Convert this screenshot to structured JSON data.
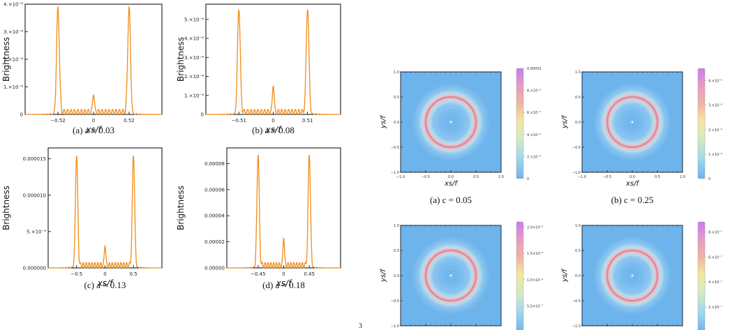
{
  "page_number": "3",
  "line_plots": [
    {
      "caption": "(a) a = 0.03",
      "xlabel": "xs/f",
      "ylabel": "Brightness",
      "peak_x": 0.52,
      "center_value": 7e-07,
      "peak_value": 3.8e-06,
      "ylim": [
        0,
        4e-06
      ],
      "xticks": [
        {
          "v": -0.52,
          "label": "−0.52"
        },
        {
          "v": 0,
          "label": "0"
        },
        {
          "v": 0.52,
          "label": "0.52"
        }
      ],
      "yticks": [
        {
          "v": 0,
          "label": "0"
        },
        {
          "v": 1e-06,
          "label": "1.×10⁻⁶"
        },
        {
          "v": 2e-06,
          "label": "2.×10⁻⁶"
        },
        {
          "v": 3e-06,
          "label": "3.×10⁻⁶"
        },
        {
          "v": 4e-06,
          "label": "4.×10⁻⁶"
        }
      ]
    },
    {
      "caption": "(b) a = 0.08",
      "xlabel": "xs/f",
      "ylabel": "Brightness",
      "peak_x": 0.51,
      "center_value": 1.5e-06,
      "peak_value": 5.5e-06,
      "ylim": [
        0,
        5.8e-06
      ],
      "xticks": [
        {
          "v": -0.51,
          "label": "−0.51"
        },
        {
          "v": 0,
          "label": "0"
        },
        {
          "v": 0.51,
          "label": "0.51"
        }
      ],
      "yticks": [
        {
          "v": 0,
          "label": "0"
        },
        {
          "v": 1e-06,
          "label": "1.×10⁻⁶"
        },
        {
          "v": 2e-06,
          "label": "2.×10⁻⁶"
        },
        {
          "v": 3e-06,
          "label": "3.×10⁻⁶"
        },
        {
          "v": 4e-06,
          "label": "4.×10⁻⁶"
        },
        {
          "v": 5e-06,
          "label": "5.×10⁻⁶"
        }
      ]
    },
    {
      "caption": "(c) a = 0.13",
      "xlabel": "xs/f",
      "ylabel": "Brightness",
      "peak_x": 0.5,
      "center_value": 3e-06,
      "peak_value": 1.53e-05,
      "ylim": [
        0,
        1.65e-05
      ],
      "xticks": [
        {
          "v": -0.5,
          "label": "−0.5"
        },
        {
          "v": 0,
          "label": "0"
        },
        {
          "v": 0.5,
          "label": "0.5"
        }
      ],
      "yticks": [
        {
          "v": 0,
          "label": "0.000000"
        },
        {
          "v": 5e-06,
          "label": "5.×10⁻⁶"
        },
        {
          "v": 1e-05,
          "label": "0.000010"
        },
        {
          "v": 1.5e-05,
          "label": "0.000015"
        }
      ]
    },
    {
      "caption": "(d) a = 0.18",
      "xlabel": "xs/f",
      "ylabel": "Brightness",
      "peak_x": 0.45,
      "center_value": 2.3e-05,
      "peak_value": 8.6e-05,
      "ylim": [
        0,
        9.2e-05
      ],
      "xticks": [
        {
          "v": -0.45,
          "label": "−0.45"
        },
        {
          "v": 0,
          "label": "0"
        },
        {
          "v": 0.45,
          "label": "0.45"
        }
      ],
      "yticks": [
        {
          "v": 0,
          "label": "0.00000"
        },
        {
          "v": 2e-05,
          "label": "0.00002"
        },
        {
          "v": 4e-05,
          "label": "0.00004"
        },
        {
          "v": 6e-05,
          "label": "0.00006"
        },
        {
          "v": 8e-05,
          "label": "0.00008"
        }
      ]
    }
  ],
  "density_plots": [
    {
      "caption": "(a) c = 0.05",
      "xlabel": "xs/f",
      "ylabel": "ys/f",
      "ring_radius": 0.5,
      "ticks": [
        {
          "v": -1.0,
          "label": "−1.0"
        },
        {
          "v": -0.5,
          "label": "−0.5"
        },
        {
          "v": 0.0,
          "label": "0.0"
        },
        {
          "v": 0.5,
          "label": "0.5"
        },
        {
          "v": 1.0,
          "label": "1.0"
        }
      ],
      "colorbar_max": 1e-05,
      "colorbar_ticks": [
        {
          "v": 0,
          "label": "0"
        },
        {
          "v": 2e-06,
          "label": "2.×10⁻⁶"
        },
        {
          "v": 4e-06,
          "label": "4.×10⁻⁶"
        },
        {
          "v": 6e-06,
          "label": "6.×10⁻⁶"
        },
        {
          "v": 8e-06,
          "label": "8.×10⁻⁶"
        },
        {
          "v": 1e-05,
          "label": "0.00001"
        }
      ]
    },
    {
      "caption": "(b) c = 0.25",
      "xlabel": "xs/f",
      "ylabel": "ys/f",
      "ring_radius": 0.5,
      "ticks": [
        {
          "v": -1.0,
          "label": "−1.0"
        },
        {
          "v": -0.5,
          "label": "−0.5"
        },
        {
          "v": 0.0,
          "label": "0.0"
        },
        {
          "v": 0.5,
          "label": "0.5"
        },
        {
          "v": 1.0,
          "label": "1.0"
        }
      ],
      "colorbar_max": 4.5e-06,
      "colorbar_ticks": [
        {
          "v": 0,
          "label": "0"
        },
        {
          "v": 1e-06,
          "label": "1.×10⁻⁶"
        },
        {
          "v": 2e-06,
          "label": "2.×10⁻⁶"
        },
        {
          "v": 3e-06,
          "label": "3.×10⁻⁶"
        },
        {
          "v": 4e-06,
          "label": "4.×10⁻⁶"
        }
      ]
    },
    {
      "caption": "",
      "xlabel": "",
      "ylabel": "ys/f",
      "ring_radius": 0.5,
      "ticks": [
        {
          "v": -1.0,
          "label": "−1.0"
        },
        {
          "v": -0.5,
          "label": "−0.5"
        },
        {
          "v": 0.0,
          "label": "0.0"
        },
        {
          "v": 0.5,
          "label": "0.5"
        },
        {
          "v": 1.0,
          "label": "1.0"
        }
      ],
      "colorbar_max": 2.1e-06,
      "colorbar_ticks": [
        {
          "v": 5e-07,
          "label": "5.0×10⁻⁷"
        },
        {
          "v": 1e-06,
          "label": "1.0×10⁻⁶"
        },
        {
          "v": 1.5e-06,
          "label": "1.5×10⁻⁶"
        },
        {
          "v": 2e-06,
          "label": "2.0×10⁻⁶"
        }
      ]
    },
    {
      "caption": "",
      "xlabel": "",
      "ylabel": "ys/f",
      "ring_radius": 0.5,
      "ticks": [
        {
          "v": -1.0,
          "label": "−1.0"
        },
        {
          "v": -0.5,
          "label": "−0.5"
        },
        {
          "v": 0.0,
          "label": "0.0"
        },
        {
          "v": 0.5,
          "label": "0.5"
        },
        {
          "v": 1.0,
          "label": "1.0"
        }
      ],
      "colorbar_max": 8.8e-07,
      "colorbar_ticks": [
        {
          "v": 2e-07,
          "label": "2.×10⁻⁷"
        },
        {
          "v": 4e-07,
          "label": "4.×10⁻⁷"
        },
        {
          "v": 6e-07,
          "label": "6.×10⁻⁷"
        },
        {
          "v": 8e-07,
          "label": "8.×10⁻⁷"
        }
      ]
    }
  ],
  "chart_data": [
    {
      "type": "line",
      "title": "(a) a = 0.03",
      "xlabel": "xs/f",
      "ylabel": "Brightness",
      "xlim": [
        -1,
        1
      ],
      "ylim": [
        0,
        4e-06
      ],
      "series": [
        {
          "x": [
            -1,
            -0.52,
            0,
            0.52,
            1
          ],
          "y": [
            0,
            3.8e-06,
            7e-07,
            3.8e-06,
            0
          ]
        }
      ]
    },
    {
      "type": "line",
      "title": "(b) a = 0.08",
      "xlabel": "xs/f",
      "ylabel": "Brightness",
      "xlim": [
        -1,
        1
      ],
      "ylim": [
        0,
        5.8e-06
      ],
      "series": [
        {
          "x": [
            -1,
            -0.51,
            0,
            0.51,
            1
          ],
          "y": [
            0,
            5.5e-06,
            1.5e-06,
            5.5e-06,
            0
          ]
        }
      ]
    },
    {
      "type": "line",
      "title": "(c) a = 0.13",
      "xlabel": "xs/f",
      "ylabel": "Brightness",
      "xlim": [
        -1,
        1
      ],
      "ylim": [
        0,
        1.65e-05
      ],
      "series": [
        {
          "x": [
            -1,
            -0.5,
            0,
            0.5,
            1
          ],
          "y": [
            0,
            1.53e-05,
            3e-06,
            1.53e-05,
            0
          ]
        }
      ]
    },
    {
      "type": "line",
      "title": "(d) a = 0.18",
      "xlabel": "xs/f",
      "ylabel": "Brightness",
      "xlim": [
        -1,
        1
      ],
      "ylim": [
        0,
        9.2e-05
      ],
      "series": [
        {
          "x": [
            -1,
            -0.45,
            0,
            0.45,
            1
          ],
          "y": [
            0,
            8.6e-05,
            2.3e-05,
            8.6e-05,
            0
          ]
        }
      ]
    },
    {
      "type": "heatmap",
      "title": "(a) c = 0.05",
      "xlabel": "xs/f",
      "ylabel": "ys/f",
      "xlim": [
        -1,
        1
      ],
      "ylim": [
        -1,
        1
      ],
      "ring_radius": 0.5,
      "colorbar_range": [
        0,
        1e-05
      ]
    },
    {
      "type": "heatmap",
      "title": "(b) c = 0.25",
      "xlabel": "xs/f",
      "ylabel": "ys/f",
      "xlim": [
        -1,
        1
      ],
      "ylim": [
        -1,
        1
      ],
      "ring_radius": 0.5,
      "colorbar_range": [
        0,
        4.5e-06
      ]
    },
    {
      "type": "heatmap",
      "ylabel": "ys/f",
      "xlim": [
        -1,
        1
      ],
      "ylim": [
        -1,
        1
      ],
      "ring_radius": 0.5,
      "colorbar_range": [
        0,
        2.1e-06
      ]
    },
    {
      "type": "heatmap",
      "ylabel": "ys/f",
      "xlim": [
        -1,
        1
      ],
      "ylim": [
        -1,
        1
      ],
      "ring_radius": 0.5,
      "colorbar_range": [
        0,
        8.8e-07
      ]
    }
  ],
  "colors": {
    "curve": "#F28C16",
    "field": "#6DB3EC",
    "ring_inner": "#E3A4B9",
    "ring_core": "#D97A9C",
    "colorbar": [
      "#6DB3EC",
      "#9ED8F0",
      "#D4EBC0",
      "#F4E6A2",
      "#F0B4A2",
      "#E89AC6",
      "#C37FEF"
    ]
  }
}
